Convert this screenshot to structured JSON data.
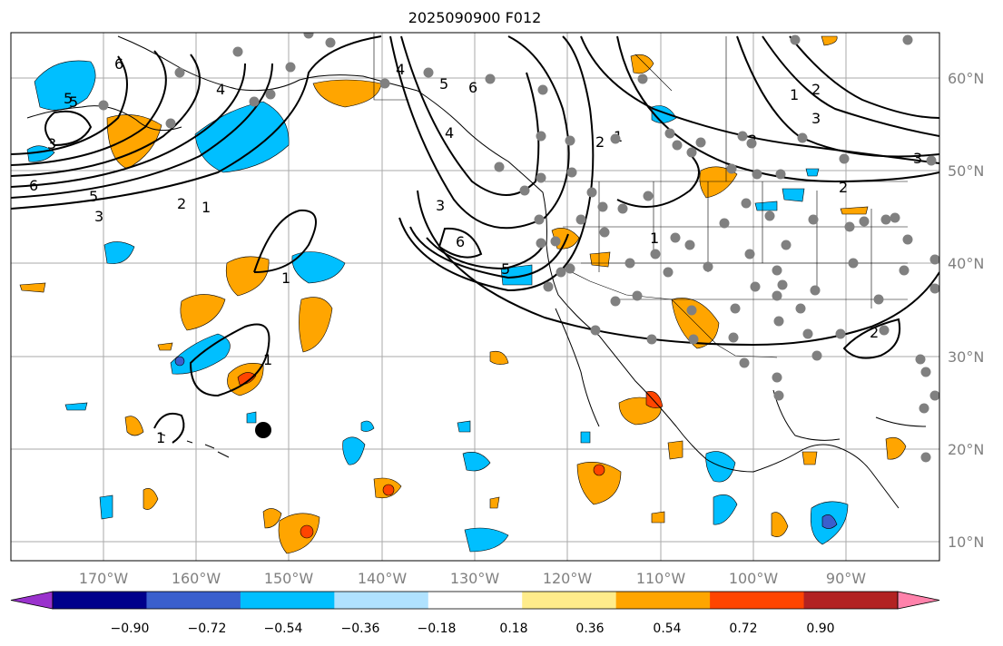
{
  "title": "2025090900 F012",
  "map": {
    "projection": "plate-carree",
    "lon_range": [
      -180,
      -80
    ],
    "lat_range": [
      8,
      65
    ],
    "gridlines": true,
    "lon_labels": [
      "170°W",
      "160°W",
      "150°W",
      "140°W",
      "130°W",
      "120°W",
      "110°W",
      "100°W",
      "90°W"
    ],
    "lat_labels": [
      "60°N",
      "50°N",
      "40°N",
      "30°N",
      "20°N",
      "10°N"
    ],
    "contour_color": "#000000",
    "contour_labels": [
      "6",
      "5",
      "4",
      "3",
      "2",
      "1",
      "3",
      "6",
      "5",
      "4",
      "2",
      "1",
      "3",
      "6",
      "5",
      "4",
      "2",
      "1",
      "3",
      "2",
      "1",
      "1",
      "1",
      "2",
      "2",
      "1",
      "3",
      "5",
      "6",
      "5"
    ],
    "station_marker_color": "#808080"
  },
  "colorbar": {
    "ticks": [
      "−0.90",
      "−0.72",
      "−0.54",
      "−0.36",
      "−0.18",
      "0.18",
      "0.36",
      "0.54",
      "0.72",
      "0.90"
    ],
    "colors": [
      "#9a32cd",
      "#00008b",
      "#3a5fcd",
      "#00bfff",
      "#b0e2ff",
      "#ffffff",
      "#ffec8b",
      "#ffa500",
      "#ff4500",
      "#b22222",
      "#ff82ab"
    ],
    "extend": "both"
  }
}
